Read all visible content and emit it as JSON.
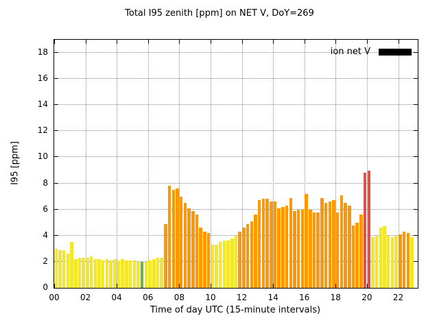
{
  "title": "Total I95 zenith [ppm] on NET V, DoY=269",
  "legend": {
    "label": "ion net V",
    "swatch_color": "#000000"
  },
  "chart_data": {
    "type": "bar",
    "title": "Total I95 zenith [ppm] on NET V, DoY=269",
    "xlabel": "Time of day UTC (15-minute intervals)",
    "ylabel": "I95 [ppm]",
    "ylim": [
      0,
      19
    ],
    "x_slots_total": 93,
    "grid": true,
    "legend_position": "top-right-inside",
    "y_ticks": [
      0,
      2,
      4,
      6,
      8,
      10,
      12,
      14,
      16,
      18
    ],
    "x_ticks": [
      "00",
      "02",
      "04",
      "06",
      "08",
      "10",
      "12",
      "14",
      "16",
      "18",
      "20",
      "22"
    ],
    "palette": {
      "y": "#f3e72b",
      "o": "#ff9800",
      "r": "#d9544d",
      "g": "#73b043"
    },
    "grid_color": "#8a8a8a",
    "x": [
      "00:00",
      "00:15",
      "00:30",
      "00:45",
      "01:00",
      "01:15",
      "01:30",
      "01:45",
      "02:00",
      "02:15",
      "02:30",
      "02:45",
      "03:00",
      "03:15",
      "03:30",
      "03:45",
      "04:00",
      "04:15",
      "04:30",
      "04:45",
      "05:00",
      "05:15",
      "05:30",
      "05:45",
      "06:00",
      "06:15",
      "06:30",
      "06:45",
      "07:00",
      "07:15",
      "07:30",
      "07:45",
      "08:00",
      "08:15",
      "08:30",
      "08:45",
      "09:00",
      "09:15",
      "09:30",
      "09:45",
      "10:00",
      "10:15",
      "10:30",
      "10:45",
      "11:00",
      "11:15",
      "11:30",
      "11:45",
      "12:00",
      "12:15",
      "12:30",
      "12:45",
      "13:00",
      "13:15",
      "13:30",
      "13:45",
      "14:00",
      "14:15",
      "14:30",
      "14:45",
      "15:00",
      "15:15",
      "15:30",
      "15:45",
      "16:00",
      "16:15",
      "16:30",
      "16:45",
      "17:00",
      "17:15",
      "17:30",
      "17:45",
      "18:00",
      "18:15",
      "18:30",
      "18:45",
      "19:00",
      "19:15",
      "19:30",
      "19:45",
      "20:00",
      "20:15",
      "20:30",
      "20:45",
      "21:00",
      "21:15",
      "21:30",
      "21:45",
      "22:00",
      "22:15",
      "22:30",
      "22:45"
    ],
    "values": [
      3.0,
      2.9,
      2.9,
      2.6,
      3.5,
      2.2,
      2.3,
      2.3,
      2.3,
      2.4,
      2.2,
      2.2,
      2.1,
      2.2,
      2.1,
      2.2,
      2.1,
      2.2,
      2.1,
      2.1,
      2.1,
      2.0,
      2.0,
      2.0,
      2.1,
      2.2,
      2.3,
      2.3,
      4.9,
      7.8,
      7.5,
      7.6,
      7.0,
      6.5,
      6.1,
      5.9,
      5.6,
      4.6,
      4.3,
      4.2,
      3.3,
      3.3,
      3.5,
      3.6,
      3.6,
      3.8,
      4.0,
      4.3,
      4.6,
      4.9,
      5.1,
      5.6,
      6.7,
      6.8,
      6.8,
      6.6,
      6.6,
      6.1,
      6.2,
      6.3,
      6.9,
      5.9,
      6.0,
      6.0,
      7.2,
      6.0,
      5.8,
      5.8,
      6.9,
      6.5,
      6.6,
      6.7,
      5.8,
      7.1,
      6.5,
      6.3,
      4.8,
      5.0,
      5.6,
      8.8,
      9.0,
      3.9,
      4.0,
      4.6,
      4.7,
      4.0,
      3.9,
      4.0,
      4.1,
      4.3,
      4.2,
      3.9
    ],
    "colors": [
      "y",
      "y",
      "y",
      "y",
      "y",
      "y",
      "y",
      "y",
      "y",
      "y",
      "y",
      "y",
      "y",
      "y",
      "y",
      "y",
      "y",
      "y",
      "y",
      "y",
      "y",
      "y",
      "g",
      "y",
      "y",
      "y",
      "y",
      "y",
      "o",
      "o",
      "o",
      "o",
      "o",
      "o",
      "o",
      "o",
      "o",
      "o",
      "o",
      "o",
      "y",
      "y",
      "y",
      "y",
      "y",
      "y",
      "y",
      "o",
      "o",
      "o",
      "o",
      "o",
      "o",
      "o",
      "o",
      "o",
      "o",
      "o",
      "o",
      "o",
      "o",
      "o",
      "o",
      "o",
      "o",
      "o",
      "o",
      "o",
      "o",
      "o",
      "o",
      "o",
      "o",
      "o",
      "o",
      "o",
      "o",
      "o",
      "o",
      "r",
      "r",
      "y",
      "y",
      "y",
      "y",
      "y",
      "y",
      "y",
      "o",
      "o",
      "o",
      "y"
    ]
  }
}
